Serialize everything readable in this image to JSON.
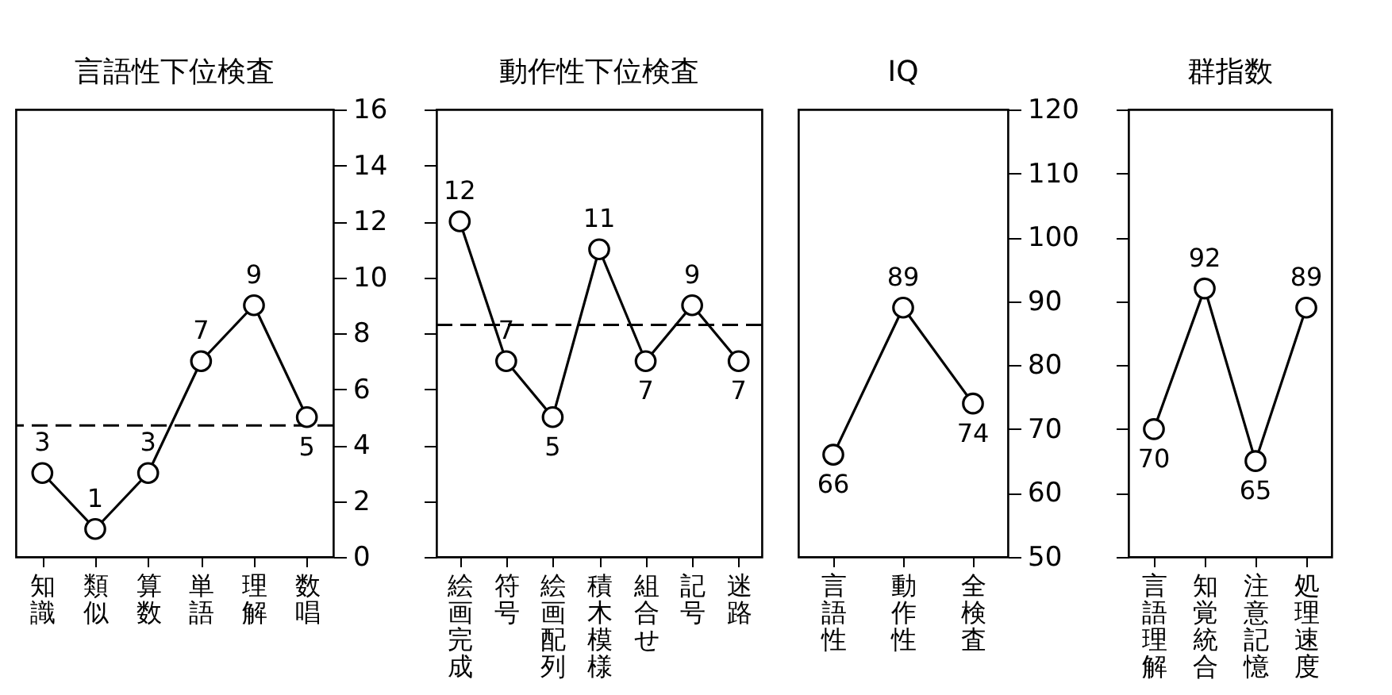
{
  "chart_data": [
    {
      "type": "line",
      "title": "言語性下位検査",
      "categories": [
        "知識",
        "類似",
        "算数",
        "単語",
        "理解",
        "数唱"
      ],
      "values": [
        3,
        1,
        3,
        7,
        9,
        5
      ],
      "color": "#000000",
      "ylim": [
        0,
        16
      ],
      "yticks": [
        0,
        2,
        4,
        6,
        8,
        10,
        12,
        14,
        16
      ],
      "marker": "circle",
      "line_style": "solid",
      "data_labels": true,
      "grid": false,
      "ref_lines": [
        {
          "axis": "y",
          "value": 4.7,
          "line_style": "dashed",
          "color": "#000000"
        }
      ]
    },
    {
      "type": "line",
      "title": "動作性下位検査",
      "categories": [
        "絵画完成",
        "符号",
        "絵画配列",
        "積木模様",
        "組合せ",
        "記号",
        "迷路"
      ],
      "values": [
        12,
        7,
        5,
        11,
        7,
        9,
        7
      ],
      "color": "#000000",
      "ylim": [
        0,
        16
      ],
      "yticks": [
        0,
        2,
        4,
        6,
        8,
        10,
        12,
        14,
        16
      ],
      "tick_labels": "x",
      "marker": "circle",
      "line_style": "solid",
      "data_labels": true,
      "grid": false,
      "ref_lines": [
        {
          "axis": "y",
          "value": 8.3,
          "line_style": "dashed",
          "color": "#000000"
        }
      ]
    },
    {
      "type": "line",
      "title": "IQ",
      "categories": [
        "言語性",
        "動作性",
        "全検査"
      ],
      "values": [
        66,
        89,
        74
      ],
      "color": "#000000",
      "ylim": [
        50,
        120
      ],
      "yticks": [
        50,
        60,
        70,
        80,
        90,
        100,
        110,
        120
      ],
      "marker": "circle",
      "line_style": "solid",
      "data_labels": true,
      "grid": false
    },
    {
      "type": "line",
      "title": "群指数",
      "categories": [
        "言語理解",
        "知覚統合",
        "注意記憶",
        "処理速度"
      ],
      "values": [
        70,
        92,
        65,
        89
      ],
      "color": "#000000",
      "ylim": [
        50,
        120
      ],
      "yticks": [
        50,
        60,
        70,
        80,
        90,
        100,
        110,
        120
      ],
      "tick_labels": "x",
      "marker": "circle",
      "line_style": "solid",
      "data_labels": true,
      "grid": false
    }
  ]
}
